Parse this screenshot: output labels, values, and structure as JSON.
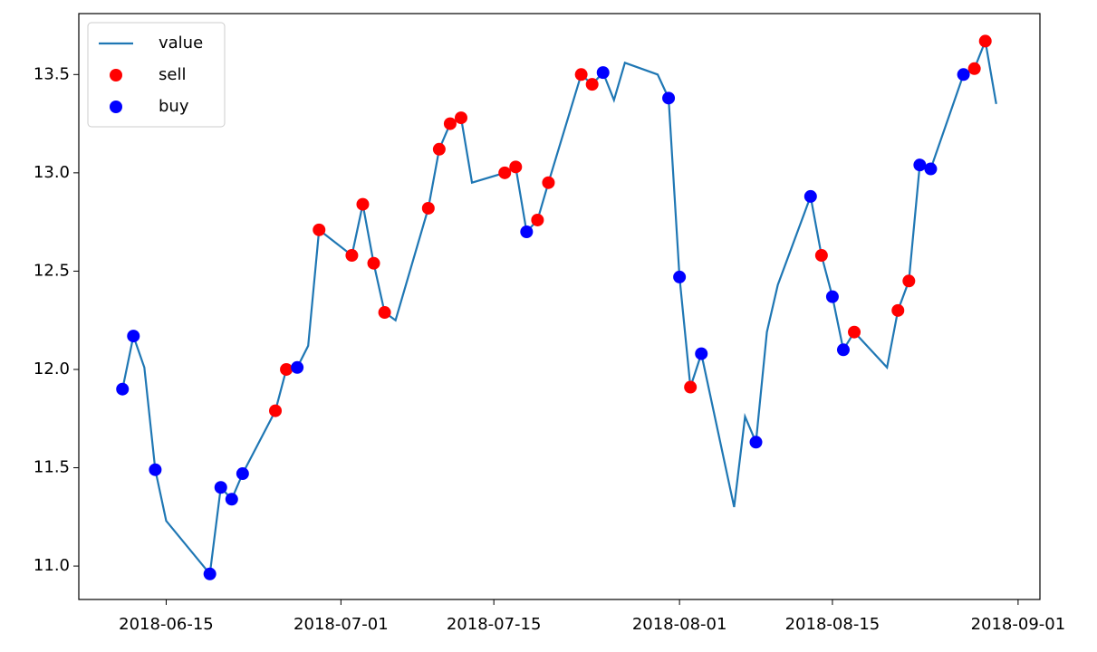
{
  "chart_data": {
    "type": "line",
    "legend": "upper left",
    "x": [
      "2018-06-11",
      "2018-06-12",
      "2018-06-13",
      "2018-06-14",
      "2018-06-15",
      "2018-06-19",
      "2018-06-20",
      "2018-06-21",
      "2018-06-22",
      "2018-06-25",
      "2018-06-26",
      "2018-06-27",
      "2018-06-28",
      "2018-06-29",
      "2018-07-02",
      "2018-07-03",
      "2018-07-04",
      "2018-07-05",
      "2018-07-06",
      "2018-07-09",
      "2018-07-10",
      "2018-07-11",
      "2018-07-12",
      "2018-07-13",
      "2018-07-16",
      "2018-07-17",
      "2018-07-18",
      "2018-07-19",
      "2018-07-20",
      "2018-07-23",
      "2018-07-24",
      "2018-07-25",
      "2018-07-26",
      "2018-07-27",
      "2018-07-30",
      "2018-07-31",
      "2018-08-01",
      "2018-08-02",
      "2018-08-03",
      "2018-08-06",
      "2018-08-07",
      "2018-08-08",
      "2018-08-09",
      "2018-08-10",
      "2018-08-13",
      "2018-08-14",
      "2018-08-15",
      "2018-08-16",
      "2018-08-17",
      "2018-08-20",
      "2018-08-21",
      "2018-08-22",
      "2018-08-23",
      "2018-08-24",
      "2018-08-27",
      "2018-08-28",
      "2018-08-29",
      "2018-08-30"
    ],
    "series": [
      {
        "name": "value",
        "type": "line",
        "color": "#1f77b4",
        "values": [
          11.9,
          12.17,
          12.01,
          11.49,
          11.23,
          10.96,
          11.4,
          11.34,
          11.47,
          11.79,
          12.0,
          12.01,
          12.12,
          12.71,
          12.58,
          12.84,
          12.54,
          12.29,
          12.25,
          12.82,
          13.12,
          13.25,
          13.28,
          12.95,
          13.0,
          13.03,
          12.7,
          12.76,
          12.95,
          13.5,
          13.45,
          13.51,
          13.37,
          13.56,
          13.5,
          13.38,
          12.47,
          11.91,
          12.08,
          11.3,
          11.76,
          11.63,
          12.19,
          12.43,
          12.88,
          12.58,
          12.37,
          12.1,
          12.19,
          12.01,
          12.3,
          12.45,
          13.04,
          13.02,
          13.5,
          13.53,
          13.67,
          13.35
        ]
      },
      {
        "name": "sell",
        "type": "scatter",
        "color": "#ff0000",
        "x": [
          "2018-06-25",
          "2018-06-26",
          "2018-06-29",
          "2018-07-02",
          "2018-07-03",
          "2018-07-04",
          "2018-07-05",
          "2018-07-09",
          "2018-07-10",
          "2018-07-11",
          "2018-07-12",
          "2018-07-16",
          "2018-07-17",
          "2018-07-19",
          "2018-07-20",
          "2018-07-23",
          "2018-07-24",
          "2018-08-02",
          "2018-08-14",
          "2018-08-17",
          "2018-08-21",
          "2018-08-22",
          "2018-08-28",
          "2018-08-29"
        ],
        "values": [
          11.79,
          12.0,
          12.71,
          12.58,
          12.84,
          12.54,
          12.29,
          12.82,
          13.12,
          13.25,
          13.28,
          13.0,
          13.03,
          12.76,
          12.95,
          13.5,
          13.45,
          11.91,
          12.58,
          12.19,
          12.3,
          12.45,
          13.53,
          13.67
        ]
      },
      {
        "name": "buy",
        "type": "scatter",
        "color": "#0000ff",
        "x": [
          "2018-06-11",
          "2018-06-12",
          "2018-06-14",
          "2018-06-19",
          "2018-06-20",
          "2018-06-21",
          "2018-06-22",
          "2018-06-27",
          "2018-07-18",
          "2018-07-25",
          "2018-07-31",
          "2018-08-01",
          "2018-08-03",
          "2018-08-08",
          "2018-08-13",
          "2018-08-15",
          "2018-08-16",
          "2018-08-23",
          "2018-08-24",
          "2018-08-27"
        ],
        "values": [
          11.9,
          12.17,
          11.49,
          10.96,
          11.4,
          11.34,
          11.47,
          12.01,
          12.7,
          13.51,
          13.38,
          12.47,
          12.08,
          11.63,
          12.88,
          12.37,
          12.1,
          13.04,
          13.02,
          13.5
        ]
      }
    ],
    "xlim": [
      "2018-06-07",
      "2018-09-03"
    ],
    "xticks": [
      "2018-06-15",
      "2018-07-01",
      "2018-07-15",
      "2018-08-01",
      "2018-08-15",
      "2018-09-01"
    ],
    "ylim": [
      10.83,
      13.81
    ],
    "yticks": [
      11.0,
      11.5,
      12.0,
      12.5,
      13.0,
      13.5
    ]
  }
}
